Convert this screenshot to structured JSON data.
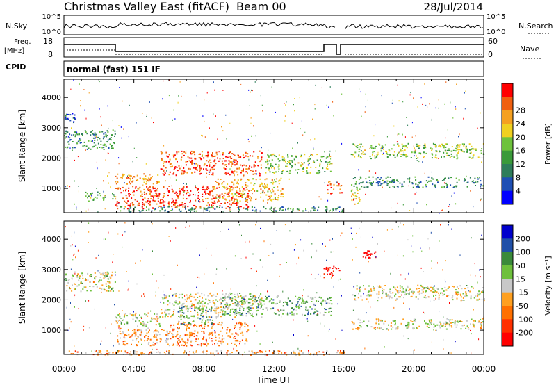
{
  "header": {
    "title": "Christmas Valley East (fitACF)",
    "beam": "Beam 00",
    "date": "28/Jul/2014"
  },
  "status_panels": {
    "nsky_label": "N.Sky",
    "nsky_ticks": [
      "10^5",
      "10^0"
    ],
    "nsearch_label": "N.Search",
    "nsearch_ticks": [
      "10^5",
      "10^0"
    ],
    "freq_label_line1": "Freq.",
    "freq_label_line2": "[MHz]",
    "freq_ticks": [
      "18",
      "8"
    ],
    "nave_label": "Nave",
    "nave_ticks": [
      "60",
      "0"
    ],
    "cpid_label": "CPID",
    "cpid_text": "normal (fast) 151 IF"
  },
  "colors": {
    "power_scale": [
      "#0000ff",
      "#1e4fb4",
      "#2e7d5a",
      "#3a9a3a",
      "#6ec23c",
      "#f0d020",
      "#f5a020",
      "#f06010",
      "#ff0000"
    ],
    "velocity_scale": [
      "#0000cc",
      "#2050a8",
      "#3a8a3a",
      "#6ec03c",
      "#c8c8c8",
      "#ffa020",
      "#ff7000",
      "#ff3000",
      "#ff0000"
    ]
  },
  "chart_data": [
    {
      "type": "heatmap",
      "name": "power",
      "xlabel": "Time UT",
      "ylabel": "Slant Range [km]",
      "xlim": [
        0,
        24
      ],
      "ylim": [
        200,
        4600
      ],
      "x_ticks": [
        "00:00",
        "04:00",
        "08:00",
        "12:00",
        "16:00",
        "20:00",
        "00:00"
      ],
      "y_ticks": [
        1000,
        2000,
        3000,
        4000
      ],
      "colorbar_label": "Power [dB]",
      "colorbar_ticks": [
        "4",
        "8",
        "12",
        "16",
        "20",
        "24",
        "28"
      ],
      "bands": [
        {
          "t0": 0.0,
          "t1": 2.9,
          "r0": 2300,
          "r1": 2950,
          "level": 0.35
        },
        {
          "t0": 0.0,
          "t1": 0.6,
          "r0": 3200,
          "r1": 3500,
          "level": 0.2
        },
        {
          "t0": 1.2,
          "t1": 2.9,
          "r0": 600,
          "r1": 900,
          "level": 0.4
        },
        {
          "t0": 2.9,
          "t1": 5.5,
          "r0": 1150,
          "r1": 1500,
          "level": 0.75
        },
        {
          "t0": 5.5,
          "t1": 11.3,
          "r0": 1450,
          "r1": 2250,
          "level": 0.85
        },
        {
          "t0": 2.9,
          "t1": 10.5,
          "r0": 350,
          "r1": 1100,
          "level": 0.9
        },
        {
          "t0": 8.5,
          "t1": 12.5,
          "r0": 600,
          "r1": 1350,
          "level": 0.7
        },
        {
          "t0": 11.5,
          "t1": 15.3,
          "r0": 1500,
          "r1": 2150,
          "level": 0.5
        },
        {
          "t0": 15.0,
          "t1": 15.9,
          "r0": 850,
          "r1": 1250,
          "level": 0.85
        },
        {
          "t0": 16.4,
          "t1": 24.0,
          "r0": 2000,
          "r1": 2500,
          "level": 0.5
        },
        {
          "t0": 16.4,
          "t1": 24.0,
          "r0": 1050,
          "r1": 1400,
          "level": 0.3
        },
        {
          "t0": 16.4,
          "t1": 16.9,
          "r0": 500,
          "r1": 1000,
          "level": 0.6
        },
        {
          "t0": 3.0,
          "t1": 16.0,
          "r0": 250,
          "r1": 420,
          "level": 0.3
        }
      ]
    },
    {
      "type": "heatmap",
      "name": "velocity",
      "xlabel": "Time UT",
      "ylabel": "Slant Range [km]",
      "xlim": [
        0,
        24
      ],
      "ylim": [
        200,
        4600
      ],
      "x_ticks": [
        "00:00",
        "04:00",
        "08:00",
        "12:00",
        "16:00",
        "20:00",
        "00:00"
      ],
      "y_ticks": [
        1000,
        2000,
        3000,
        4000
      ],
      "colorbar_label": "Velocity [m s⁻¹]",
      "colorbar_ticks": [
        "200",
        "100",
        "50",
        "15",
        "-15",
        "-50",
        "-100",
        "-200"
      ],
      "bands": [
        {
          "t0": 0.0,
          "t1": 2.9,
          "r0": 2300,
          "r1": 2950,
          "level": 0.5
        },
        {
          "t0": 2.9,
          "t1": 5.5,
          "r0": 1150,
          "r1": 1600,
          "level": 0.5
        },
        {
          "t0": 5.5,
          "t1": 11.3,
          "r0": 1450,
          "r1": 2250,
          "level": 0.5
        },
        {
          "t0": 3.0,
          "t1": 6.0,
          "r0": 500,
          "r1": 1100,
          "level": 0.62
        },
        {
          "t0": 6.0,
          "t1": 10.5,
          "r0": 500,
          "r1": 1300,
          "level": 0.7
        },
        {
          "t0": 6.5,
          "t1": 8.5,
          "r0": 1200,
          "r1": 1800,
          "level": 0.3
        },
        {
          "t0": 9.0,
          "t1": 15.3,
          "r0": 1500,
          "r1": 2150,
          "level": 0.35
        },
        {
          "t0": 14.8,
          "t1": 15.8,
          "r0": 2750,
          "r1": 3150,
          "level": 1.0
        },
        {
          "t0": 16.4,
          "t1": 24.0,
          "r0": 2000,
          "r1": 2500,
          "level": 0.5
        },
        {
          "t0": 16.4,
          "t1": 24.0,
          "r0": 1050,
          "r1": 1400,
          "level": 0.5
        },
        {
          "t0": 17.0,
          "t1": 17.8,
          "r0": 3400,
          "r1": 3650,
          "level": 1.0
        },
        {
          "t0": 0.0,
          "t1": 16.0,
          "r0": 200,
          "r1": 350,
          "level": 0.65
        }
      ]
    }
  ]
}
